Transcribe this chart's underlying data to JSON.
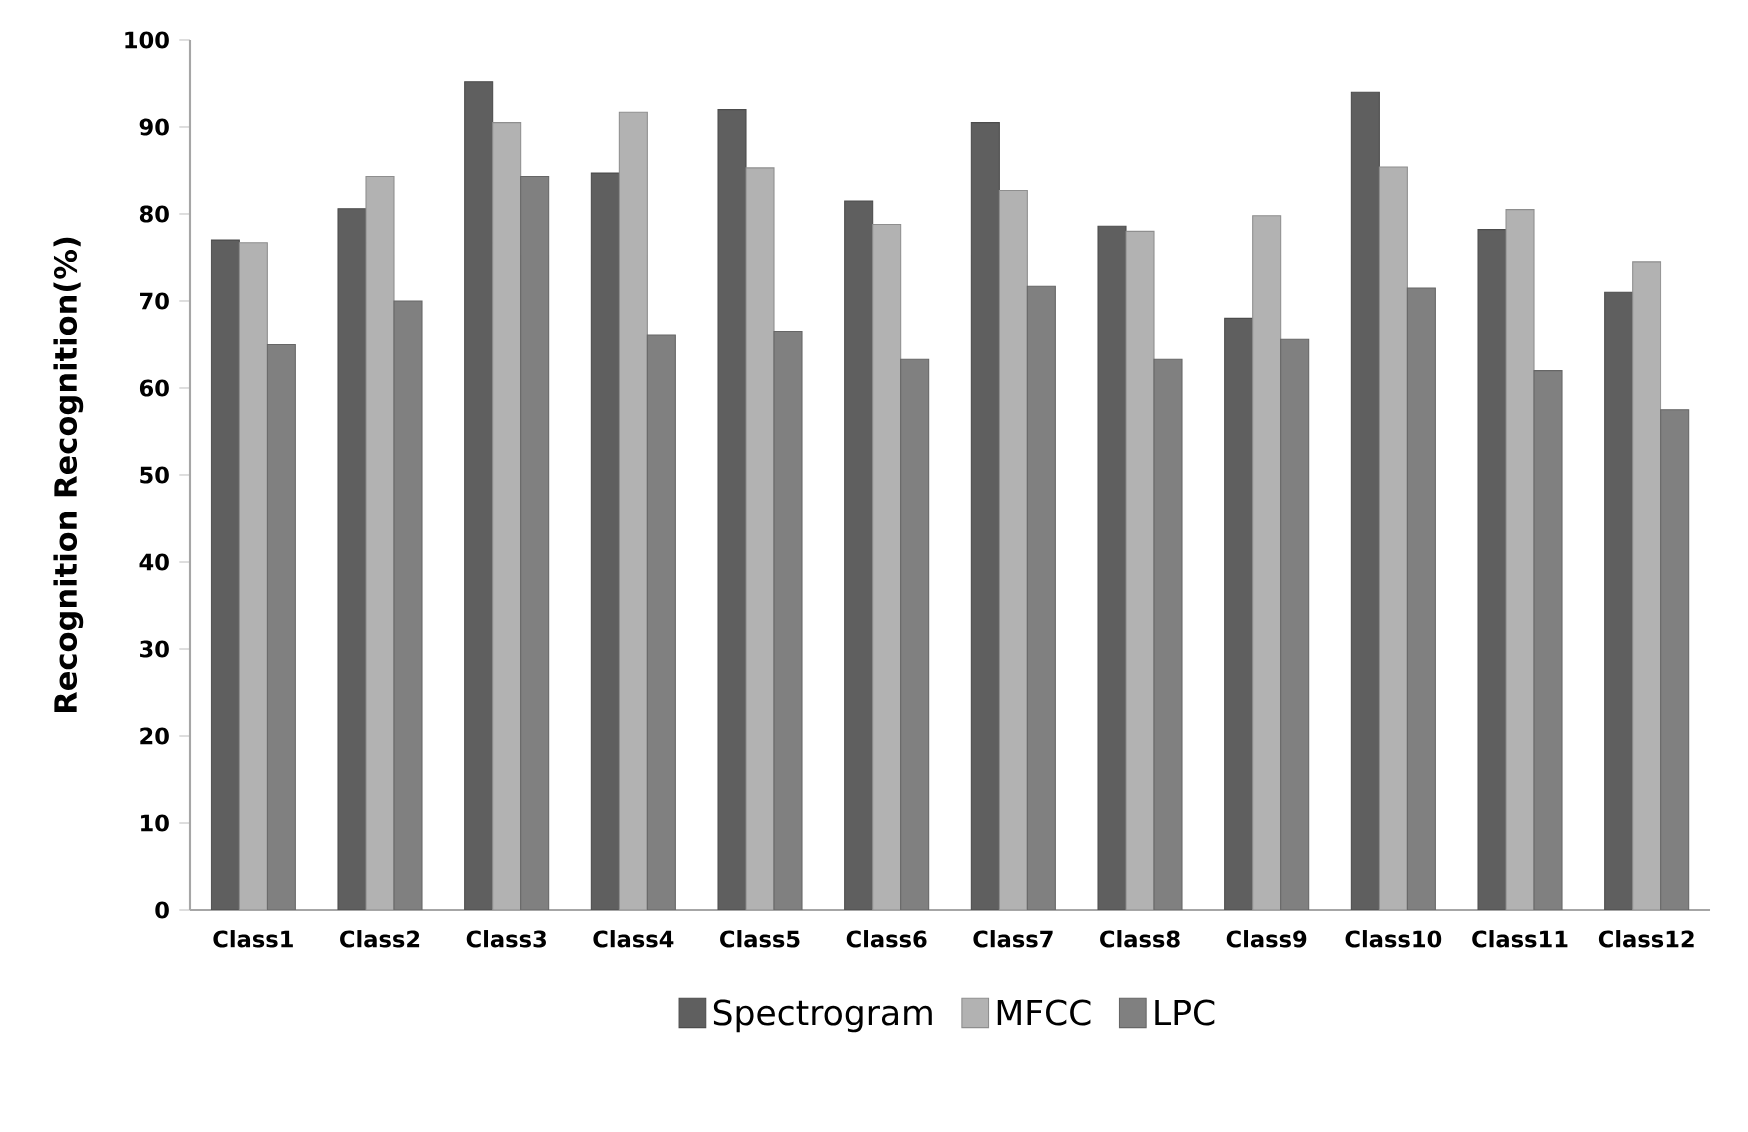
{
  "chart_data": {
    "type": "bar",
    "ylabel": "Recognition Recognition(%)",
    "categories": [
      "Class1",
      "Class2",
      "Class3",
      "Class4",
      "Class5",
      "Class6",
      "Class7",
      "Class8",
      "Class9",
      "Class10",
      "Class11",
      "Class12"
    ],
    "series": [
      {
        "name": "Spectrogram",
        "color": "#5f5f5f",
        "values": [
          77,
          80.6,
          95.2,
          84.7,
          92,
          81.5,
          90.5,
          78.6,
          68,
          94,
          78.2,
          71
        ]
      },
      {
        "name": "MFCC",
        "color": "#b2b2b2",
        "values": [
          76.7,
          84.3,
          90.5,
          91.7,
          85.3,
          78.8,
          82.7,
          78,
          79.8,
          85.4,
          80.5,
          74.5
        ]
      },
      {
        "name": "LPC",
        "color": "#808080",
        "values": [
          65,
          70,
          84.3,
          66.1,
          66.5,
          63.3,
          71.7,
          63.3,
          65.6,
          71.5,
          62,
          57.5
        ]
      }
    ],
    "ylim": [
      0,
      100
    ],
    "yticks": [
      0,
      10,
      20,
      30,
      40,
      50,
      60,
      70,
      80,
      90,
      100
    ],
    "grid": false,
    "legend": "bottom"
  }
}
